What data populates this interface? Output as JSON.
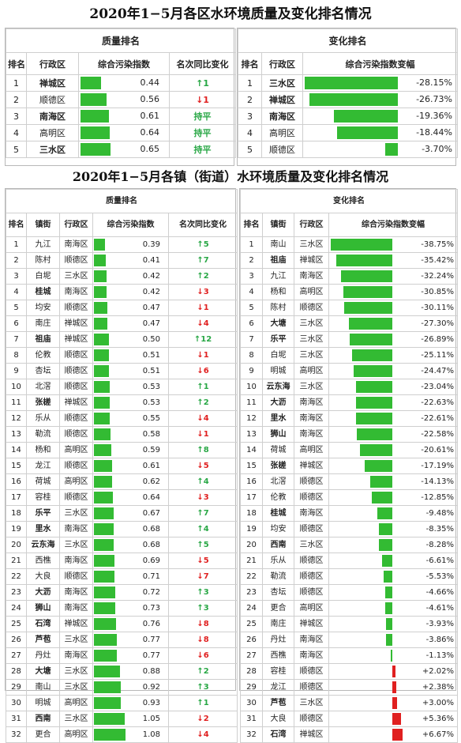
{
  "title1": "2020年1−5月各区水环境质量及变化排名情况",
  "title2": "2020年1−5月各镇（街道）水环境质量及变化排名情况",
  "district": {
    "quality_header": "质量排名",
    "change_header": "变化排名",
    "cols_left": [
      "排名",
      "行政区",
      "综合污染指数",
      "名次同比变化"
    ],
    "cols_right": [
      "排名",
      "行政区",
      "综合污染指数变幅"
    ],
    "quality_rows": [
      {
        "rank": "1",
        "name": "禅城区",
        "bold": true,
        "index": "0.44",
        "value": 0.44,
        "arrow": "↑",
        "delta": "1",
        "dir": "up"
      },
      {
        "rank": "2",
        "name": "顺德区",
        "bold": false,
        "index": "0.56",
        "value": 0.56,
        "arrow": "↓",
        "delta": "1",
        "dir": "down"
      },
      {
        "rank": "3",
        "name": "南海区",
        "bold": true,
        "index": "0.61",
        "value": 0.61,
        "arrow": "",
        "delta": "持平",
        "dir": "flat"
      },
      {
        "rank": "4",
        "name": "高明区",
        "bold": false,
        "index": "0.64",
        "value": 0.64,
        "arrow": "",
        "delta": "持平",
        "dir": "flat"
      },
      {
        "rank": "5",
        "name": "三水区",
        "bold": true,
        "index": "0.65",
        "value": 0.65,
        "arrow": "",
        "delta": "持平",
        "dir": "flat"
      }
    ],
    "change_rows": [
      {
        "rank": "1",
        "name": "三水区",
        "bold": true,
        "change": "-28.15%",
        "value": -28.15
      },
      {
        "rank": "2",
        "name": "禅城区",
        "bold": true,
        "change": "-26.73%",
        "value": -26.73
      },
      {
        "rank": "3",
        "name": "南海区",
        "bold": true,
        "change": "-19.36%",
        "value": -19.36
      },
      {
        "rank": "4",
        "name": "高明区",
        "bold": false,
        "change": "-18.44%",
        "value": -18.44
      },
      {
        "rank": "5",
        "name": "顺德区",
        "bold": false,
        "change": "-3.70%",
        "value": -3.7
      }
    ]
  },
  "town": {
    "quality_header": "质量排名",
    "change_header": "变化排名",
    "cols_left": [
      "排名",
      "镇街",
      "行政区",
      "综合污染指数",
      "名次同比变化"
    ],
    "cols_right": [
      "排名",
      "镇街",
      "行政区",
      "综合污染指数变幅"
    ],
    "quality_rows": [
      {
        "rank": "1",
        "town": "九江",
        "bold": false,
        "district": "南海区",
        "index": "0.39",
        "value": 0.39,
        "arrow": "↑",
        "delta": "5",
        "dir": "up"
      },
      {
        "rank": "2",
        "town": "陈村",
        "bold": false,
        "district": "顺德区",
        "index": "0.41",
        "value": 0.41,
        "arrow": "↑",
        "delta": "7",
        "dir": "up"
      },
      {
        "rank": "3",
        "town": "白坭",
        "bold": false,
        "district": "三水区",
        "index": "0.42",
        "value": 0.42,
        "arrow": "↑",
        "delta": "2",
        "dir": "up"
      },
      {
        "rank": "4",
        "town": "桂城",
        "bold": true,
        "district": "南海区",
        "index": "0.42",
        "value": 0.42,
        "arrow": "↓",
        "delta": "3",
        "dir": "down"
      },
      {
        "rank": "5",
        "town": "均安",
        "bold": false,
        "district": "顺德区",
        "index": "0.47",
        "value": 0.47,
        "arrow": "↓",
        "delta": "1",
        "dir": "down"
      },
      {
        "rank": "6",
        "town": "南庄",
        "bold": false,
        "district": "禅城区",
        "index": "0.47",
        "value": 0.47,
        "arrow": "↓",
        "delta": "4",
        "dir": "down"
      },
      {
        "rank": "7",
        "town": "祖庙",
        "bold": true,
        "district": "禅城区",
        "index": "0.50",
        "value": 0.5,
        "arrow": "↑",
        "delta": "12",
        "dir": "up"
      },
      {
        "rank": "8",
        "town": "伦教",
        "bold": false,
        "district": "顺德区",
        "index": "0.51",
        "value": 0.51,
        "arrow": "↓",
        "delta": "1",
        "dir": "down"
      },
      {
        "rank": "9",
        "town": "杏坛",
        "bold": false,
        "district": "顺德区",
        "index": "0.51",
        "value": 0.51,
        "arrow": "↓",
        "delta": "6",
        "dir": "down"
      },
      {
        "rank": "10",
        "town": "北滘",
        "bold": false,
        "district": "顺德区",
        "index": "0.53",
        "value": 0.53,
        "arrow": "↑",
        "delta": "1",
        "dir": "up"
      },
      {
        "rank": "11",
        "town": "张槎",
        "bold": true,
        "district": "禅城区",
        "index": "0.53",
        "value": 0.53,
        "arrow": "↑",
        "delta": "2",
        "dir": "up"
      },
      {
        "rank": "12",
        "town": "乐从",
        "bold": false,
        "district": "顺德区",
        "index": "0.55",
        "value": 0.55,
        "arrow": "↓",
        "delta": "4",
        "dir": "down"
      },
      {
        "rank": "13",
        "town": "勒流",
        "bold": false,
        "district": "顺德区",
        "index": "0.58",
        "value": 0.58,
        "arrow": "↓",
        "delta": "1",
        "dir": "down"
      },
      {
        "rank": "14",
        "town": "杨和",
        "bold": false,
        "district": "高明区",
        "index": "0.59",
        "value": 0.59,
        "arrow": "↑",
        "delta": "8",
        "dir": "up"
      },
      {
        "rank": "15",
        "town": "龙江",
        "bold": false,
        "district": "顺德区",
        "index": "0.61",
        "value": 0.61,
        "arrow": "↓",
        "delta": "5",
        "dir": "down"
      },
      {
        "rank": "16",
        "town": "荷城",
        "bold": false,
        "district": "高明区",
        "index": "0.62",
        "value": 0.62,
        "arrow": "↑",
        "delta": "4",
        "dir": "up"
      },
      {
        "rank": "17",
        "town": "容桂",
        "bold": false,
        "district": "顺德区",
        "index": "0.64",
        "value": 0.64,
        "arrow": "↓",
        "delta": "3",
        "dir": "down"
      },
      {
        "rank": "18",
        "town": "乐平",
        "bold": true,
        "district": "三水区",
        "index": "0.67",
        "value": 0.67,
        "arrow": "↑",
        "delta": "7",
        "dir": "up"
      },
      {
        "rank": "19",
        "town": "里水",
        "bold": true,
        "district": "南海区",
        "index": "0.68",
        "value": 0.68,
        "arrow": "↑",
        "delta": "4",
        "dir": "up"
      },
      {
        "rank": "20",
        "town": "云东海",
        "bold": true,
        "district": "三水区",
        "index": "0.68",
        "value": 0.68,
        "arrow": "↑",
        "delta": "5",
        "dir": "up"
      },
      {
        "rank": "21",
        "town": "西樵",
        "bold": false,
        "district": "南海区",
        "index": "0.69",
        "value": 0.69,
        "arrow": "↓",
        "delta": "5",
        "dir": "down"
      },
      {
        "rank": "22",
        "town": "大良",
        "bold": false,
        "district": "顺德区",
        "index": "0.71",
        "value": 0.71,
        "arrow": "↓",
        "delta": "7",
        "dir": "down"
      },
      {
        "rank": "23",
        "town": "大沥",
        "bold": true,
        "district": "南海区",
        "index": "0.72",
        "value": 0.72,
        "arrow": "↑",
        "delta": "3",
        "dir": "up"
      },
      {
        "rank": "24",
        "town": "狮山",
        "bold": true,
        "district": "南海区",
        "index": "0.73",
        "value": 0.73,
        "arrow": "↑",
        "delta": "3",
        "dir": "up"
      },
      {
        "rank": "25",
        "town": "石湾",
        "bold": true,
        "district": "禅城区",
        "index": "0.76",
        "value": 0.76,
        "arrow": "↓",
        "delta": "8",
        "dir": "down"
      },
      {
        "rank": "26",
        "town": "芦苞",
        "bold": true,
        "district": "三水区",
        "index": "0.77",
        "value": 0.77,
        "arrow": "↓",
        "delta": "8",
        "dir": "down"
      },
      {
        "rank": "27",
        "town": "丹灶",
        "bold": false,
        "district": "南海区",
        "index": "0.77",
        "value": 0.77,
        "arrow": "↓",
        "delta": "6",
        "dir": "down"
      },
      {
        "rank": "28",
        "town": "大塘",
        "bold": true,
        "district": "三水区",
        "index": "0.88",
        "value": 0.88,
        "arrow": "↑",
        "delta": "2",
        "dir": "up"
      },
      {
        "rank": "29",
        "town": "南山",
        "bold": false,
        "district": "三水区",
        "index": "0.92",
        "value": 0.92,
        "arrow": "↑",
        "delta": "3",
        "dir": "up"
      },
      {
        "rank": "30",
        "town": "明城",
        "bold": false,
        "district": "高明区",
        "index": "0.93",
        "value": 0.93,
        "arrow": "↑",
        "delta": "1",
        "dir": "up"
      },
      {
        "rank": "31",
        "town": "西南",
        "bold": true,
        "district": "三水区",
        "index": "1.05",
        "value": 1.05,
        "arrow": "↓",
        "delta": "2",
        "dir": "down"
      },
      {
        "rank": "32",
        "town": "更合",
        "bold": false,
        "district": "高明区",
        "index": "1.08",
        "value": 1.08,
        "arrow": "↓",
        "delta": "4",
        "dir": "down"
      }
    ],
    "change_rows": [
      {
        "rank": "1",
        "town": "南山",
        "bold": false,
        "district": "三水区",
        "change": "-38.75%",
        "value": -38.75
      },
      {
        "rank": "2",
        "town": "祖庙",
        "bold": true,
        "district": "禅城区",
        "change": "-35.42%",
        "value": -35.42
      },
      {
        "rank": "3",
        "town": "九江",
        "bold": false,
        "district": "南海区",
        "change": "-32.24%",
        "value": -32.24
      },
      {
        "rank": "4",
        "town": "杨和",
        "bold": false,
        "district": "高明区",
        "change": "-30.85%",
        "value": -30.85
      },
      {
        "rank": "5",
        "town": "陈村",
        "bold": false,
        "district": "顺德区",
        "change": "-30.11%",
        "value": -30.11
      },
      {
        "rank": "6",
        "town": "大塘",
        "bold": true,
        "district": "三水区",
        "change": "-27.30%",
        "value": -27.3
      },
      {
        "rank": "7",
        "town": "乐平",
        "bold": true,
        "district": "三水区",
        "change": "-26.89%",
        "value": -26.89
      },
      {
        "rank": "8",
        "town": "白坭",
        "bold": false,
        "district": "三水区",
        "change": "-25.11%",
        "value": -25.11
      },
      {
        "rank": "9",
        "town": "明城",
        "bold": false,
        "district": "高明区",
        "change": "-24.47%",
        "value": -24.47
      },
      {
        "rank": "10",
        "town": "云东海",
        "bold": true,
        "district": "三水区",
        "change": "-23.04%",
        "value": -23.04
      },
      {
        "rank": "11",
        "town": "大沥",
        "bold": true,
        "district": "南海区",
        "change": "-22.63%",
        "value": -22.63
      },
      {
        "rank": "12",
        "town": "里水",
        "bold": true,
        "district": "南海区",
        "change": "-22.61%",
        "value": -22.61
      },
      {
        "rank": "13",
        "town": "狮山",
        "bold": true,
        "district": "南海区",
        "change": "-22.58%",
        "value": -22.58
      },
      {
        "rank": "14",
        "town": "荷城",
        "bold": false,
        "district": "高明区",
        "change": "-20.61%",
        "value": -20.61
      },
      {
        "rank": "15",
        "town": "张槎",
        "bold": true,
        "district": "禅城区",
        "change": "-17.19%",
        "value": -17.19
      },
      {
        "rank": "16",
        "town": "北滘",
        "bold": false,
        "district": "顺德区",
        "change": "-14.13%",
        "value": -14.13
      },
      {
        "rank": "17",
        "town": "伦教",
        "bold": false,
        "district": "顺德区",
        "change": "-12.85%",
        "value": -12.85
      },
      {
        "rank": "18",
        "town": "桂城",
        "bold": true,
        "district": "南海区",
        "change": "-9.48%",
        "value": -9.48
      },
      {
        "rank": "19",
        "town": "均安",
        "bold": false,
        "district": "顺德区",
        "change": "-8.35%",
        "value": -8.35
      },
      {
        "rank": "20",
        "town": "西南",
        "bold": true,
        "district": "三水区",
        "change": "-8.28%",
        "value": -8.28
      },
      {
        "rank": "21",
        "town": "乐从",
        "bold": false,
        "district": "顺德区",
        "change": "-6.61%",
        "value": -6.61
      },
      {
        "rank": "22",
        "town": "勒流",
        "bold": false,
        "district": "顺德区",
        "change": "-5.53%",
        "value": -5.53
      },
      {
        "rank": "23",
        "town": "杏坛",
        "bold": false,
        "district": "顺德区",
        "change": "-4.66%",
        "value": -4.66
      },
      {
        "rank": "24",
        "town": "更合",
        "bold": false,
        "district": "高明区",
        "change": "-4.61%",
        "value": -4.61
      },
      {
        "rank": "25",
        "town": "南庄",
        "bold": false,
        "district": "禅城区",
        "change": "-3.93%",
        "value": -3.93
      },
      {
        "rank": "26",
        "town": "丹灶",
        "bold": false,
        "district": "南海区",
        "change": "-3.86%",
        "value": -3.86
      },
      {
        "rank": "27",
        "town": "西樵",
        "bold": false,
        "district": "南海区",
        "change": "-1.13%",
        "value": -1.13
      },
      {
        "rank": "28",
        "town": "容桂",
        "bold": false,
        "district": "顺德区",
        "change": "+2.02%",
        "value": 2.02
      },
      {
        "rank": "29",
        "town": "龙江",
        "bold": false,
        "district": "顺德区",
        "change": "+2.38%",
        "value": 2.38
      },
      {
        "rank": "30",
        "town": "芦苞",
        "bold": true,
        "district": "三水区",
        "change": "+3.00%",
        "value": 3.0
      },
      {
        "rank": "31",
        "town": "大良",
        "bold": false,
        "district": "顺德区",
        "change": "+5.36%",
        "value": 5.36
      },
      {
        "rank": "32",
        "town": "石湾",
        "bold": true,
        "district": "禅城区",
        "change": "+6.67%",
        "value": 6.67
      }
    ]
  },
  "colors": {
    "green_bar": "#33bb33",
    "red_bar": "#e02020",
    "up": "#28a745",
    "down": "#e02020"
  }
}
